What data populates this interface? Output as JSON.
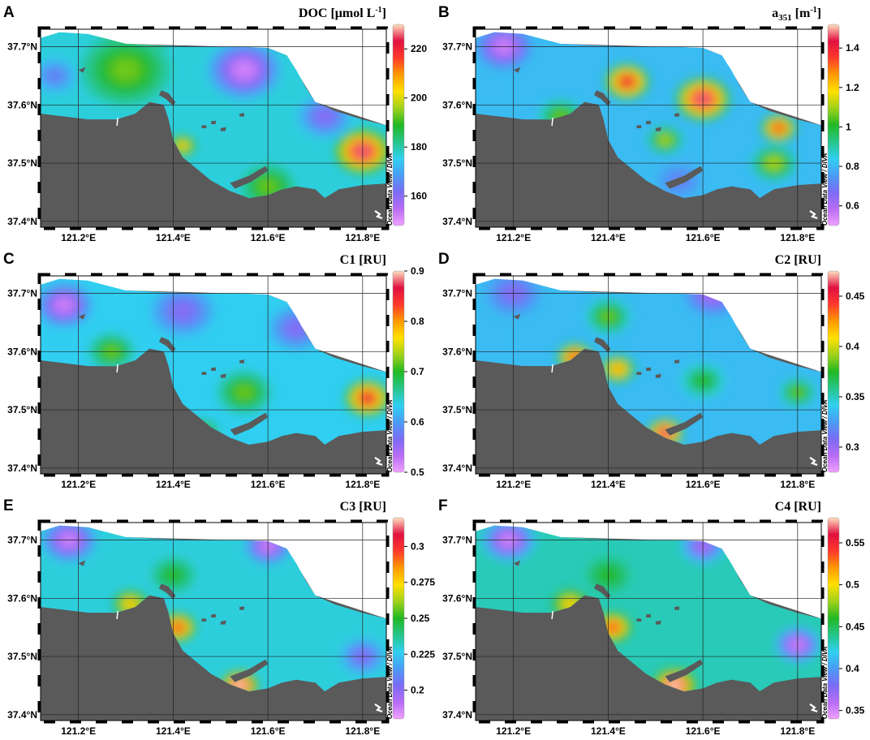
{
  "palette": [
    "#f0a0ff",
    "#b86cf5",
    "#7a6cf5",
    "#4a9cf5",
    "#2fd0f0",
    "#25c58a",
    "#22b822",
    "#9fd21a",
    "#ffe000",
    "#ff9a00",
    "#ff3a2a",
    "#e01040",
    "#ffe0c0"
  ],
  "land_color": "#5a5a5a",
  "sea_color": "#ffffff",
  "watermark": "Ocean Data View / DIVA",
  "axes": {
    "x_ticks": [
      "121.2°E",
      "121.4°E",
      "121.6°E",
      "121.8°E"
    ],
    "x_tick_values": [
      121.2,
      121.4,
      121.6,
      121.8
    ],
    "y_ticks": [
      "37.4°N",
      "37.5°N",
      "37.6°N",
      "37.7°N"
    ],
    "y_tick_values": [
      37.4,
      37.5,
      37.6,
      37.7
    ],
    "x_range": [
      121.12,
      121.85
    ],
    "y_range": [
      37.39,
      37.73
    ]
  },
  "panels": [
    {
      "letter": "A",
      "title": "DOC [μmol L",
      "title_sup": "-1",
      "title_tail": "]",
      "colorbar": {
        "min": 148,
        "max": 230,
        "ticks": [
          "160",
          "180",
          "200",
          "220"
        ],
        "tick_values": [
          160,
          180,
          200,
          220
        ]
      },
      "hotspots": [
        {
          "lon": 121.8,
          "lat": 37.52,
          "level": 0.95,
          "spread": 0.06
        },
        {
          "lon": 121.32,
          "lat": 37.72,
          "level": 0.75,
          "spread": 0.07
        },
        {
          "lon": 121.42,
          "lat": 37.53,
          "level": 0.7,
          "spread": 0.03
        },
        {
          "lon": 121.3,
          "lat": 37.66,
          "level": 0.55,
          "spread": 0.1
        },
        {
          "lon": 121.6,
          "lat": 37.46,
          "level": 0.55,
          "spread": 0.06
        },
        {
          "lon": 121.55,
          "lat": 37.66,
          "level": 0.05,
          "spread": 0.08
        },
        {
          "lon": 121.15,
          "lat": 37.65,
          "level": 0.2,
          "spread": 0.05
        },
        {
          "lon": 121.72,
          "lat": 37.58,
          "level": 0.15,
          "spread": 0.06
        }
      ],
      "base": 0.35
    },
    {
      "letter": "B",
      "title": "a",
      "title_sub": "351",
      "title_tail": " [m",
      "title_sup": "-1",
      "title_tail2": "]",
      "colorbar": {
        "min": 0.5,
        "max": 1.52,
        "ticks": [
          "0.6",
          "0.8",
          "1",
          "1.2",
          "1.4"
        ],
        "tick_values": [
          0.6,
          0.8,
          1.0,
          1.2,
          1.4
        ]
      },
      "hotspots": [
        {
          "lon": 121.44,
          "lat": 37.64,
          "level": 0.9,
          "spread": 0.05
        },
        {
          "lon": 121.6,
          "lat": 37.61,
          "level": 0.95,
          "spread": 0.06
        },
        {
          "lon": 121.76,
          "lat": 37.56,
          "level": 0.85,
          "spread": 0.04
        },
        {
          "lon": 121.52,
          "lat": 37.54,
          "level": 0.6,
          "spread": 0.04
        },
        {
          "lon": 121.75,
          "lat": 37.5,
          "level": 0.6,
          "spread": 0.05
        },
        {
          "lon": 121.3,
          "lat": 37.58,
          "level": 0.55,
          "spread": 0.05
        },
        {
          "lon": 121.55,
          "lat": 37.47,
          "level": 0.2,
          "spread": 0.05
        },
        {
          "lon": 121.18,
          "lat": 37.7,
          "level": 0.05,
          "spread": 0.06
        }
      ],
      "base": 0.3
    },
    {
      "letter": "C",
      "title": "C1 [RU]",
      "colorbar": {
        "min": 0.5,
        "max": 0.9,
        "ticks": [
          "0.5",
          "0.6",
          "0.7",
          "0.8",
          "0.9"
        ],
        "tick_values": [
          0.5,
          0.6,
          0.7,
          0.8,
          0.9
        ]
      },
      "hotspots": [
        {
          "lon": 121.81,
          "lat": 37.52,
          "level": 0.9,
          "spread": 0.05
        },
        {
          "lon": 121.55,
          "lat": 37.53,
          "level": 0.55,
          "spread": 0.06
        },
        {
          "lon": 121.27,
          "lat": 37.6,
          "level": 0.55,
          "spread": 0.05
        },
        {
          "lon": 121.46,
          "lat": 37.46,
          "level": 0.55,
          "spread": 0.04
        },
        {
          "lon": 121.17,
          "lat": 37.68,
          "level": 0.05,
          "spread": 0.06
        },
        {
          "lon": 121.42,
          "lat": 37.67,
          "level": 0.15,
          "spread": 0.07
        },
        {
          "lon": 121.66,
          "lat": 37.64,
          "level": 0.15,
          "spread": 0.06
        }
      ],
      "base": 0.33
    },
    {
      "letter": "D",
      "title": "C2 [RU]",
      "colorbar": {
        "min": 0.275,
        "max": 0.475,
        "ticks": [
          "0.3",
          "0.35",
          "0.4",
          "0.45"
        ],
        "tick_values": [
          0.3,
          0.35,
          0.4,
          0.45
        ]
      },
      "hotspots": [
        {
          "lon": 121.33,
          "lat": 37.59,
          "level": 0.85,
          "spread": 0.04
        },
        {
          "lon": 121.42,
          "lat": 37.57,
          "level": 0.75,
          "spread": 0.04
        },
        {
          "lon": 121.52,
          "lat": 37.46,
          "level": 0.95,
          "spread": 0.04
        },
        {
          "lon": 121.4,
          "lat": 37.66,
          "level": 0.55,
          "spread": 0.05
        },
        {
          "lon": 121.6,
          "lat": 37.55,
          "level": 0.5,
          "spread": 0.05
        },
        {
          "lon": 121.8,
          "lat": 37.53,
          "level": 0.55,
          "spread": 0.04
        },
        {
          "lon": 121.2,
          "lat": 37.7,
          "level": 0.15,
          "spread": 0.06
        },
        {
          "lon": 121.62,
          "lat": 37.7,
          "level": 0.1,
          "spread": 0.06
        }
      ],
      "base": 0.3
    },
    {
      "letter": "E",
      "title": "C3 [RU]",
      "colorbar": {
        "min": 0.18,
        "max": 0.32,
        "ticks": [
          "0.2",
          "0.225",
          "0.25",
          "0.275",
          "0.3"
        ],
        "tick_values": [
          0.2,
          0.225,
          0.25,
          0.275,
          0.3
        ]
      },
      "hotspots": [
        {
          "lon": 121.54,
          "lat": 37.45,
          "level": 1.0,
          "spread": 0.04
        },
        {
          "lon": 121.41,
          "lat": 37.55,
          "level": 0.85,
          "spread": 0.04
        },
        {
          "lon": 121.31,
          "lat": 37.59,
          "level": 0.7,
          "spread": 0.04
        },
        {
          "lon": 121.4,
          "lat": 37.64,
          "level": 0.5,
          "spread": 0.05
        },
        {
          "lon": 121.18,
          "lat": 37.7,
          "level": 0.05,
          "spread": 0.06
        },
        {
          "lon": 121.6,
          "lat": 37.69,
          "level": 0.05,
          "spread": 0.05
        },
        {
          "lon": 121.8,
          "lat": 37.5,
          "level": 0.15,
          "spread": 0.05
        }
      ],
      "base": 0.35
    },
    {
      "letter": "F",
      "title": "C4 [RU]",
      "colorbar": {
        "min": 0.34,
        "max": 0.58,
        "ticks": [
          "0.35",
          "0.4",
          "0.45",
          "0.5",
          "0.55"
        ],
        "tick_values": [
          0.35,
          0.4,
          0.45,
          0.5,
          0.55
        ]
      },
      "hotspots": [
        {
          "lon": 121.54,
          "lat": 37.45,
          "level": 1.0,
          "spread": 0.045
        },
        {
          "lon": 121.41,
          "lat": 37.55,
          "level": 0.85,
          "spread": 0.04
        },
        {
          "lon": 121.32,
          "lat": 37.59,
          "level": 0.7,
          "spread": 0.04
        },
        {
          "lon": 121.4,
          "lat": 37.64,
          "level": 0.5,
          "spread": 0.05
        },
        {
          "lon": 121.19,
          "lat": 37.7,
          "level": 0.05,
          "spread": 0.06
        },
        {
          "lon": 121.6,
          "lat": 37.69,
          "level": 0.1,
          "spread": 0.05
        },
        {
          "lon": 121.8,
          "lat": 37.52,
          "level": 0.05,
          "spread": 0.05
        }
      ],
      "base": 0.38
    }
  ]
}
